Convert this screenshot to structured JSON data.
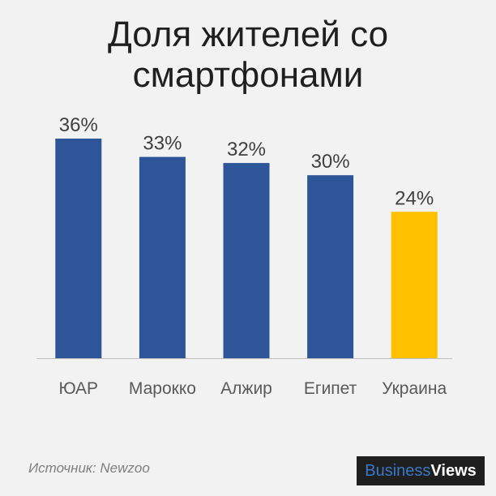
{
  "title": {
    "line1": "Доля жителей со",
    "line2": "смартфонами"
  },
  "chart_data": {
    "type": "bar",
    "categories": [
      "ЮАР",
      "Марокко",
      "Алжир",
      "Египет",
      "Украина"
    ],
    "values": [
      36,
      33,
      32,
      30,
      24
    ],
    "value_labels": [
      "36%",
      "33%",
      "32%",
      "30%",
      "24%"
    ],
    "unit": "%",
    "colors": [
      "#2e5597",
      "#2e5597",
      "#2e5597",
      "#2e5597",
      "#ffc000"
    ],
    "ylim": [
      0,
      36
    ],
    "grid": false,
    "legend": "none",
    "xlabel": "",
    "ylabel": ""
  },
  "source": "Источник: Newzoo",
  "logo": {
    "part1": "Business",
    "part2": "Views"
  }
}
